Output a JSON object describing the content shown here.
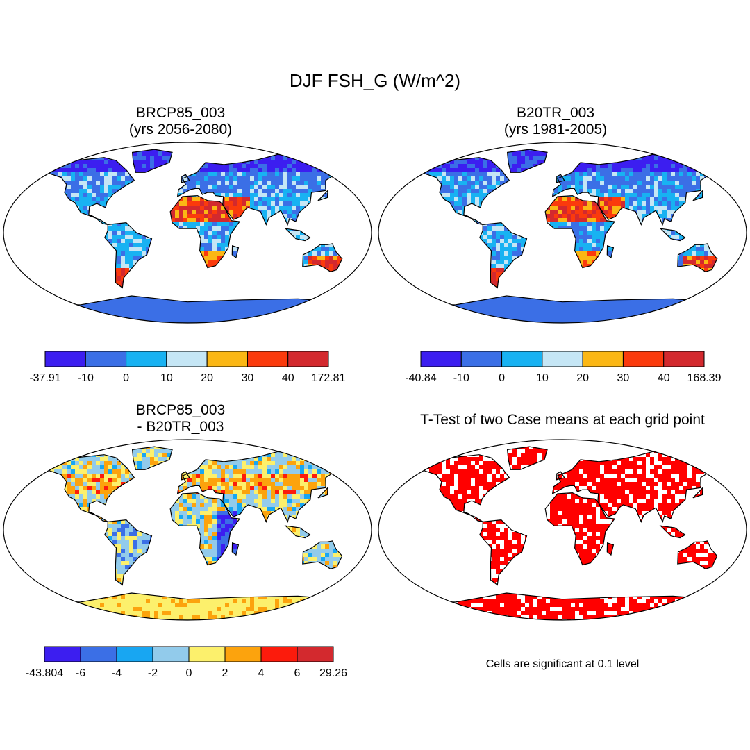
{
  "title": "DJF FSH_G (W/m^2)",
  "panels": [
    {
      "id": "p1",
      "title_lines": [
        "BRCP85_003",
        "(yrs 2056-2080)"
      ],
      "colorbar": {
        "labels": [
          "-37.91",
          "-10",
          "0",
          "10",
          "20",
          "30",
          "40",
          "172.81"
        ],
        "colors": [
          "#3c1ef0",
          "#3b6fe6",
          "#18b2f2",
          "#c5e6f5",
          "#fbb714",
          "#fb3a0c",
          "#d3292e"
        ]
      }
    },
    {
      "id": "p2",
      "title_lines": [
        "B20TR_003",
        "(yrs 1981-2005)"
      ],
      "colorbar": {
        "labels": [
          "-40.84",
          "-10",
          "0",
          "10",
          "20",
          "30",
          "40",
          "168.39"
        ],
        "colors": [
          "#3c1ef0",
          "#3b6fe6",
          "#18b2f2",
          "#c5e6f5",
          "#fbb714",
          "#fb3a0c",
          "#d3292e"
        ]
      }
    },
    {
      "id": "p3",
      "title_lines": [
        "BRCP85_003",
        "- B20TR_003"
      ],
      "colorbar": {
        "labels": [
          "-43.804",
          "-6",
          "-4",
          "-2",
          "0",
          "2",
          "4",
          "6",
          "29.26"
        ],
        "colors": [
          "#3c1ef0",
          "#3b6fe6",
          "#18a6f2",
          "#92cbeb",
          "#fcf06c",
          "#fca30d",
          "#fc1b0c",
          "#d3292e"
        ]
      }
    },
    {
      "id": "p4",
      "title_lines": [
        "T-Test of two Case means at each grid point"
      ],
      "note": "Cells are significant at 0.1 level",
      "colors": {
        "significant": "#ff0000",
        "not_significant": "#ffffff"
      }
    }
  ]
}
